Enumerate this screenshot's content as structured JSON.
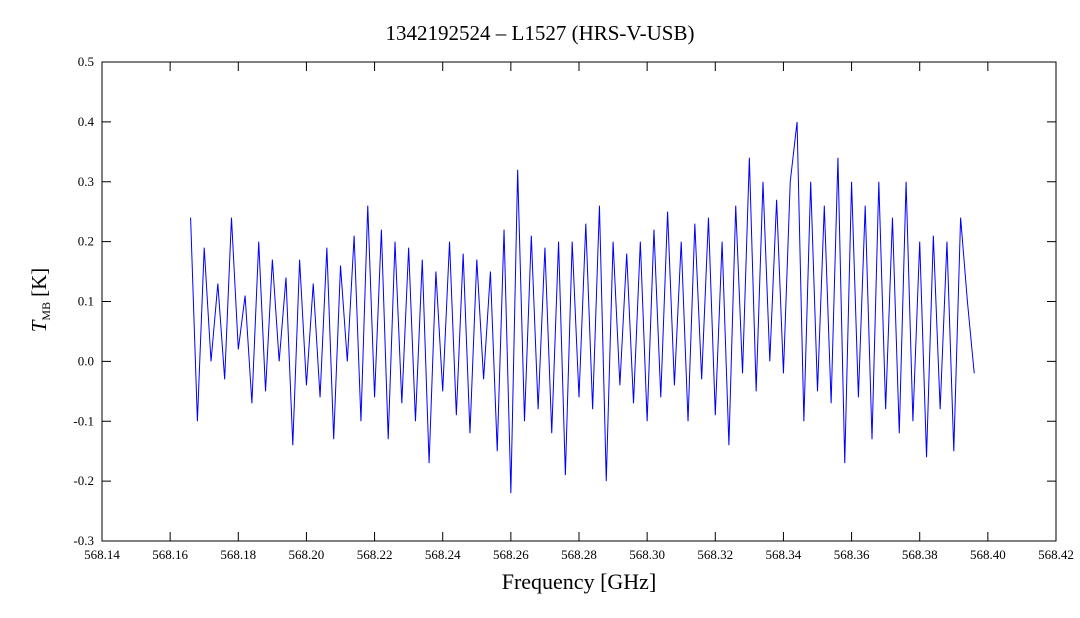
{
  "chart_data": {
    "type": "line",
    "title": "1342192524 – L1527 (HRS-V-USB)",
    "xlabel": "Frequency [GHz]",
    "ylabel": "T",
    "ylabel_sub": "MB",
    "ylabel_unit": "[K]",
    "color": "#0000ff",
    "xlim": [
      568.14,
      568.42
    ],
    "ylim": [
      -0.3,
      0.5
    ],
    "xticks": [
      568.14,
      568.16,
      568.18,
      {
        "value": 568.2,
        "label": "568.20"
      },
      568.22,
      568.24,
      568.26,
      568.28,
      {
        "value": 568.3,
        "label": "568.30"
      },
      568.32,
      568.34,
      568.36,
      568.38,
      {
        "value": 568.4,
        "label": "568.40"
      },
      568.42
    ],
    "yticks": [
      -0.3,
      -0.2,
      -0.1,
      {
        "value": 0,
        "label": "0.0"
      },
      0.1,
      0.2,
      0.3,
      0.4,
      0.5
    ],
    "x": [
      568.166,
      568.168,
      568.17,
      568.172,
      568.174,
      568.176,
      568.178,
      568.18,
      568.182,
      568.184,
      568.186,
      568.188,
      568.19,
      568.192,
      568.194,
      568.196,
      568.198,
      568.2,
      568.202,
      568.204,
      568.206,
      568.208,
      568.21,
      568.212,
      568.214,
      568.216,
      568.218,
      568.22,
      568.222,
      568.224,
      568.226,
      568.228,
      568.23,
      568.232,
      568.234,
      568.236,
      568.238,
      568.24,
      568.242,
      568.244,
      568.246,
      568.248,
      568.25,
      568.252,
      568.254,
      568.256,
      568.258,
      568.26,
      568.262,
      568.264,
      568.266,
      568.268,
      568.27,
      568.272,
      568.274,
      568.276,
      568.278,
      568.28,
      568.282,
      568.284,
      568.286,
      568.288,
      568.29,
      568.292,
      568.294,
      568.296,
      568.298,
      568.3,
      568.302,
      568.304,
      568.306,
      568.308,
      568.31,
      568.312,
      568.314,
      568.316,
      568.318,
      568.32,
      568.322,
      568.324,
      568.326,
      568.328,
      568.33,
      568.332,
      568.334,
      568.336,
      568.338,
      568.34,
      568.342,
      568.344,
      568.346,
      568.348,
      568.35,
      568.352,
      568.354,
      568.356,
      568.358,
      568.36,
      568.362,
      568.364,
      568.366,
      568.368,
      568.37,
      568.372,
      568.374,
      568.376,
      568.378,
      568.38,
      568.382,
      568.384,
      568.386,
      568.388,
      568.39,
      568.392,
      568.394,
      568.396
    ],
    "values": [
      0.24,
      -0.1,
      0.19,
      0.0,
      0.13,
      -0.03,
      0.24,
      0.02,
      0.11,
      -0.07,
      0.2,
      -0.05,
      0.17,
      0.0,
      0.14,
      -0.14,
      0.17,
      -0.04,
      0.13,
      -0.06,
      0.19,
      -0.13,
      0.16,
      0.0,
      0.21,
      -0.1,
      0.26,
      -0.06,
      0.22,
      -0.13,
      0.2,
      -0.07,
      0.19,
      -0.1,
      0.17,
      -0.17,
      0.15,
      -0.05,
      0.2,
      -0.09,
      0.18,
      -0.12,
      0.17,
      -0.03,
      0.15,
      -0.15,
      0.22,
      -0.22,
      0.32,
      -0.1,
      0.21,
      -0.08,
      0.19,
      -0.12,
      0.2,
      -0.19,
      0.2,
      -0.06,
      0.23,
      -0.08,
      0.26,
      -0.2,
      0.2,
      -0.04,
      0.18,
      -0.07,
      0.2,
      -0.1,
      0.22,
      -0.06,
      0.25,
      -0.04,
      0.2,
      -0.1,
      0.23,
      -0.03,
      0.24,
      -0.09,
      0.2,
      -0.14,
      0.26,
      -0.02,
      0.34,
      -0.05,
      0.3,
      0.0,
      0.27,
      -0.02,
      0.3,
      0.4,
      -0.1,
      0.3,
      -0.05,
      0.26,
      -0.07,
      0.34,
      -0.17,
      0.3,
      -0.06,
      0.26,
      -0.13,
      0.3,
      -0.08,
      0.24,
      -0.12,
      0.3,
      -0.1,
      0.2,
      -0.16,
      0.21,
      -0.08,
      0.2,
      -0.15,
      0.24,
      0.1,
      -0.02
    ]
  }
}
